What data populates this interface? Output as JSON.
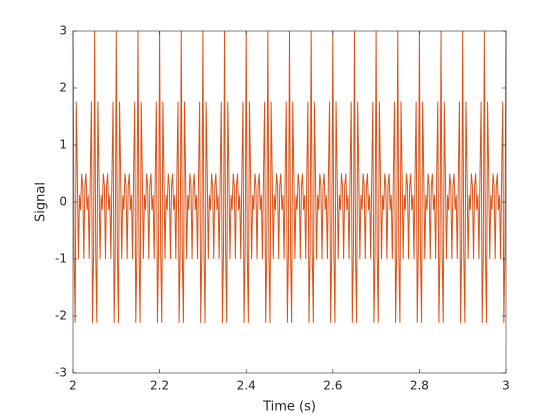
{
  "chart_data": {
    "type": "line",
    "xlabel": "Time (s)",
    "ylabel": "Signal",
    "color": "#d95319",
    "xlim": [
      2,
      3
    ],
    "xticks": [
      2,
      2.2,
      2.4,
      2.6,
      2.8,
      3
    ],
    "ylim": [
      -3,
      3
    ],
    "yticks": [
      -3,
      -2,
      -1,
      0,
      1,
      2,
      3
    ],
    "x": [
      2,
      2.0025,
      2.005,
      2.0075,
      2.01,
      2.0125,
      2.015,
      2.0175,
      2.02,
      2.0225,
      2.025,
      2.0275,
      2.03,
      2.0325,
      2.035,
      2.0375,
      2.04,
      2.0425,
      2.045,
      2.0475,
      2.05,
      2.0525,
      2.055,
      2.0575,
      2.06,
      2.0625,
      2.065,
      2.0675,
      2.07,
      2.0725,
      2.075,
      2.0775,
      2.08,
      2.0825,
      2.085,
      2.0875,
      2.09,
      2.0925,
      2.095,
      2.0975,
      2.1,
      2.1025,
      2.105,
      2.1075,
      2.11,
      2.1125,
      2.115,
      2.1175,
      2.12,
      2.1225,
      2.125,
      2.1275,
      2.13,
      2.1325,
      2.135,
      2.1375,
      2.14,
      2.1425,
      2.145,
      2.1475,
      2.15,
      2.1525,
      2.155,
      2.1575,
      2.16,
      2.1625,
      2.165,
      2.1675,
      2.17,
      2.1725,
      2.175,
      2.1775,
      2.18,
      2.1825,
      2.185,
      2.1875,
      2.19,
      2.1925,
      2.195,
      2.1975,
      2.2,
      2.2025,
      2.205,
      2.2075,
      2.21,
      2.2125,
      2.215,
      2.2175,
      2.22,
      2.2225,
      2.225,
      2.2275,
      2.23,
      2.2325,
      2.235,
      2.2375,
      2.24,
      2.2425,
      2.245,
      2.2475,
      2.25,
      2.2525,
      2.255,
      2.2575,
      2.26,
      2.2625,
      2.265,
      2.2675,
      2.27,
      2.2725,
      2.275,
      2.2775,
      2.28,
      2.2825,
      2.285,
      2.2875,
      2.29,
      2.2925,
      2.295,
      2.2975,
      2.3,
      2.3025,
      2.305,
      2.3075,
      2.31,
      2.3125,
      2.315,
      2.3175,
      2.32,
      2.3225,
      2.325,
      2.3275,
      2.33,
      2.3325,
      2.335,
      2.3375,
      2.34,
      2.3425,
      2.345,
      2.3475,
      2.35,
      2.3525,
      2.355,
      2.3575,
      2.36,
      2.3625,
      2.365,
      2.3675,
      2.37,
      2.3725,
      2.375,
      2.3775,
      2.38,
      2.3825,
      2.385,
      2.3875,
      2.39,
      2.3925,
      2.395,
      2.3975,
      2.4,
      2.4025,
      2.405,
      2.4075,
      2.41,
      2.4125,
      2.415,
      2.4175,
      2.42,
      2.4225,
      2.425,
      2.4275,
      2.43,
      2.4325,
      2.435,
      2.4375,
      2.44,
      2.4425,
      2.445,
      2.4475,
      2.45,
      2.4525,
      2.455,
      2.4575,
      2.46,
      2.4625,
      2.465,
      2.4675,
      2.47,
      2.4725,
      2.475,
      2.4775,
      2.48,
      2.4825,
      2.485,
      2.4875,
      2.49,
      2.4925,
      2.495,
      2.4975,
      2.5,
      2.5025,
      2.505,
      2.5075,
      2.51,
      2.5125,
      2.515,
      2.5175,
      2.52,
      2.5225,
      2.525,
      2.5275,
      2.53,
      2.5325,
      2.535,
      2.5375,
      2.54,
      2.5425,
      2.545,
      2.5475,
      2.55,
      2.5525,
      2.555,
      2.5575,
      2.56,
      2.5625,
      2.565,
      2.5675,
      2.57,
      2.5725,
      2.575,
      2.5775,
      2.58,
      2.5825,
      2.585,
      2.5875,
      2.59,
      2.5925,
      2.595,
      2.5975,
      2.6,
      2.6025,
      2.605,
      2.6075,
      2.61,
      2.6125,
      2.615,
      2.6175,
      2.62,
      2.6225,
      2.625,
      2.6275,
      2.63,
      2.6325,
      2.635,
      2.6375,
      2.64,
      2.6425,
      2.645,
      2.6475,
      2.65,
      2.6525,
      2.655,
      2.6575,
      2.66,
      2.6625,
      2.665,
      2.6675,
      2.67,
      2.6725,
      2.675,
      2.6775,
      2.68,
      2.6825,
      2.685,
      2.6875,
      2.69,
      2.6925,
      2.695,
      2.6975,
      2.7,
      2.7025,
      2.705,
      2.7075,
      2.71,
      2.7125,
      2.715,
      2.7175,
      2.72,
      2.7225,
      2.725,
      2.7275,
      2.73,
      2.7325,
      2.735,
      2.7375,
      2.74,
      2.7425,
      2.745,
      2.7475,
      2.75,
      2.7525,
      2.755,
      2.7575,
      2.76,
      2.7625,
      2.765,
      2.7675,
      2.77,
      2.7725,
      2.775,
      2.7775,
      2.78,
      2.7825,
      2.785,
      2.7875,
      2.79,
      2.7925,
      2.795,
      2.7975,
      2.8,
      2.8025,
      2.805,
      2.8075,
      2.81,
      2.8125,
      2.815,
      2.8175,
      2.82,
      2.8225,
      2.825,
      2.8275,
      2.83,
      2.8325,
      2.835,
      2.8375,
      2.84,
      2.8425,
      2.845,
      2.8475,
      2.85,
      2.8525,
      2.855,
      2.8575,
      2.86,
      2.8625,
      2.865,
      2.8675,
      2.87,
      2.8725,
      2.875,
      2.8775,
      2.88,
      2.8825,
      2.885,
      2.8875,
      2.89,
      2.8925,
      2.895,
      2.8975,
      2.9,
      2.9025,
      2.905,
      2.9075,
      2.91,
      2.9125,
      2.915,
      2.9175,
      2.92,
      2.9225,
      2.925,
      2.9275,
      2.93,
      2.9325,
      2.935,
      2.9375,
      2.94,
      2.9425,
      2.945,
      2.9475,
      2.95,
      2.9525,
      2.955,
      2.9575,
      2.96,
      2.9625,
      2.965,
      2.9675,
      2.97,
      2.9725,
      2.975,
      2.9775,
      2.98,
      2.9825,
      2.985,
      2.9875,
      2.99,
      2.9925,
      2.995,
      2.9975,
      3
    ],
    "values": [
      3,
      -0.9,
      -2.12,
      1.76,
      0.5,
      -1,
      0.12,
      -0.14,
      0.5,
      0.28,
      -1,
      0.28,
      0.5,
      -0.14,
      0.12,
      -1,
      0.5,
      1.76,
      -2.12,
      -0.9,
      3,
      -0.9,
      -2.12,
      1.76,
      0.5,
      -1,
      0.12,
      -0.14,
      0.5,
      0.28,
      -1,
      0.28,
      0.5,
      -0.14,
      0.12,
      -1,
      0.5,
      1.76,
      -2.12,
      -0.9,
      3,
      -0.9,
      -2.12,
      1.76,
      0.5,
      -1,
      0.12,
      -0.14,
      0.5,
      0.28,
      -1,
      0.28,
      0.5,
      -0.14,
      0.12,
      -1,
      0.5,
      1.76,
      -2.12,
      -0.9,
      3,
      -0.9,
      -2.12,
      1.76,
      0.5,
      -1,
      0.12,
      -0.14,
      0.5,
      0.28,
      -1,
      0.28,
      0.5,
      -0.14,
      0.12,
      -1,
      0.5,
      1.76,
      -2.12,
      -0.9,
      3,
      -0.9,
      -2.12,
      1.76,
      0.5,
      -1,
      0.12,
      -0.14,
      0.5,
      0.28,
      -1,
      0.28,
      0.5,
      -0.14,
      0.12,
      -1,
      0.5,
      1.76,
      -2.12,
      -0.9,
      3,
      -0.9,
      -2.12,
      1.76,
      0.5,
      -1,
      0.12,
      -0.14,
      0.5,
      0.28,
      -1,
      0.28,
      0.5,
      -0.14,
      0.12,
      -1,
      0.5,
      1.76,
      -2.12,
      -0.9,
      3,
      -0.9,
      -2.12,
      1.76,
      0.5,
      -1,
      0.12,
      -0.14,
      0.5,
      0.28,
      -1,
      0.28,
      0.5,
      -0.14,
      0.12,
      -1,
      0.5,
      1.76,
      -2.12,
      -0.9,
      3,
      -0.9,
      -2.12,
      1.76,
      0.5,
      -1,
      0.12,
      -0.14,
      0.5,
      0.28,
      -1,
      0.28,
      0.5,
      -0.14,
      0.12,
      -1,
      0.5,
      1.76,
      -2.12,
      -0.9,
      3,
      -0.9,
      -2.12,
      1.76,
      0.5,
      -1,
      0.12,
      -0.14,
      0.5,
      0.28,
      -1,
      0.28,
      0.5,
      -0.14,
      0.12,
      -1,
      0.5,
      1.76,
      -2.12,
      -0.9,
      3,
      -0.9,
      -2.12,
      1.76,
      0.5,
      -1,
      0.12,
      -0.14,
      0.5,
      0.28,
      -1,
      0.28,
      0.5,
      -0.14,
      0.12,
      -1,
      0.5,
      1.76,
      -2.12,
      -0.9,
      3,
      -0.9,
      -2.12,
      1.76,
      0.5,
      -1,
      0.12,
      -0.14,
      0.5,
      0.28,
      -1,
      0.28,
      0.5,
      -0.14,
      0.12,
      -1,
      0.5,
      1.76,
      -2.12,
      -0.9,
      3,
      -0.9,
      -2.12,
      1.76,
      0.5,
      -1,
      0.12,
      -0.14,
      0.5,
      0.28,
      -1,
      0.28,
      0.5,
      -0.14,
      0.12,
      -1,
      0.5,
      1.76,
      -2.12,
      -0.9,
      3,
      -0.9,
      -2.12,
      1.76,
      0.5,
      -1,
      0.12,
      -0.14,
      0.5,
      0.28,
      -1,
      0.28,
      0.5,
      -0.14,
      0.12,
      -1,
      0.5,
      1.76,
      -2.12,
      -0.9,
      3,
      -0.9,
      -2.12,
      1.76,
      0.5,
      -1,
      0.12,
      -0.14,
      0.5,
      0.28,
      -1,
      0.28,
      0.5,
      -0.14,
      0.12,
      -1,
      0.5,
      1.76,
      -2.12,
      -0.9,
      3,
      -0.9,
      -2.12,
      1.76,
      0.5,
      -1,
      0.12,
      -0.14,
      0.5,
      0.28,
      -1,
      0.28,
      0.5,
      -0.14,
      0.12,
      -1,
      0.5,
      1.76,
      -2.12,
      -0.9,
      3,
      -0.9,
      -2.12,
      1.76,
      0.5,
      -1,
      0.12,
      -0.14,
      0.5,
      0.28,
      -1,
      0.28,
      0.5,
      -0.14,
      0.12,
      -1,
      0.5,
      1.76,
      -2.12,
      -0.9,
      3,
      -0.9,
      -2.12,
      1.76,
      0.5,
      -1,
      0.12,
      -0.14,
      0.5,
      0.28,
      -1,
      0.28,
      0.5,
      -0.14,
      0.12,
      -1,
      0.5,
      1.76,
      -2.12,
      -0.9,
      3,
      -0.9,
      -2.12,
      1.76,
      0.5,
      -1,
      0.12,
      -0.14,
      0.5,
      0.28,
      -1,
      0.28,
      0.5,
      -0.14,
      0.12,
      -1,
      0.5,
      1.76,
      -2.12,
      -0.9,
      3,
      -0.9,
      -2.12,
      1.76,
      0.5,
      -1,
      0.12,
      -0.14,
      0.5,
      0.28,
      -1,
      0.28,
      0.5,
      -0.14,
      0.12,
      -1,
      0.5,
      1.76,
      -2.12,
      -0.9,
      3,
      -0.9,
      -2.12,
      1.76,
      0.5,
      -1,
      0.12,
      -0.14,
      0.5,
      0.28,
      -1,
      0.28,
      0.5,
      -0.14,
      0.12,
      -1,
      0.5,
      1.76,
      -2.12,
      -0.9,
      3
    ]
  }
}
